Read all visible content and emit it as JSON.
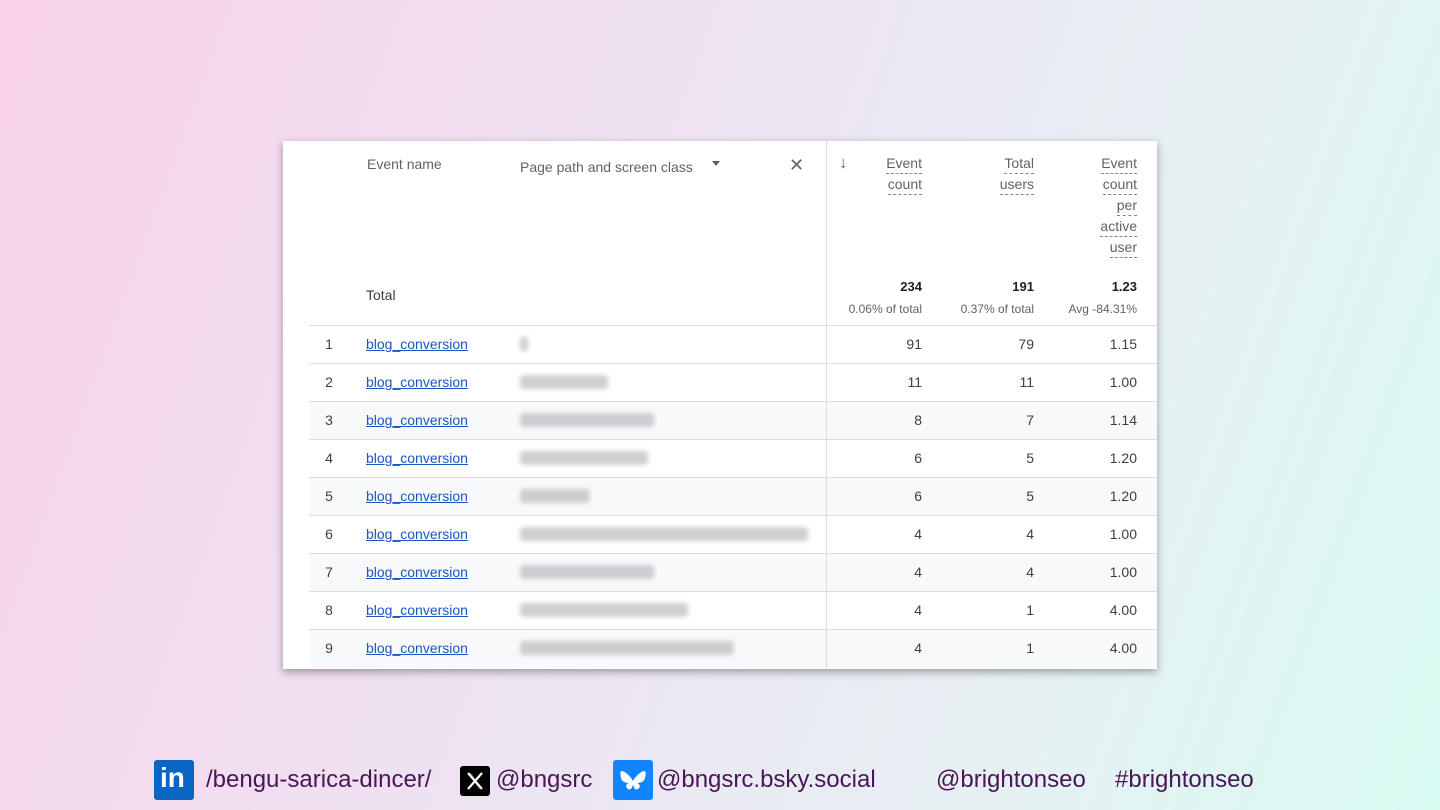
{
  "table": {
    "header": {
      "event_name": "Event name",
      "dimension": "Page path and screen class",
      "metric1": [
        "Event",
        "count"
      ],
      "metric2": [
        "Total",
        "users"
      ],
      "metric3": [
        "Event",
        "count",
        "per",
        "active",
        "user"
      ]
    },
    "totals": {
      "label": "Total",
      "event_count": "234",
      "event_count_sub": "0.06% of total",
      "total_users": "191",
      "total_users_sub": "0.37% of total",
      "per_user": "1.23",
      "per_user_sub": "Avg -84.31%"
    },
    "rows": [
      {
        "idx": "1",
        "event": "blog_conversion",
        "event_count": "91",
        "users": "79",
        "per_user": "1.15"
      },
      {
        "idx": "2",
        "event": "blog_conversion",
        "event_count": "11",
        "users": "11",
        "per_user": "1.00"
      },
      {
        "idx": "3",
        "event": "blog_conversion",
        "event_count": "8",
        "users": "7",
        "per_user": "1.14"
      },
      {
        "idx": "4",
        "event": "blog_conversion",
        "event_count": "6",
        "users": "5",
        "per_user": "1.20"
      },
      {
        "idx": "5",
        "event": "blog_conversion",
        "event_count": "6",
        "users": "5",
        "per_user": "1.20"
      },
      {
        "idx": "6",
        "event": "blog_conversion",
        "event_count": "4",
        "users": "4",
        "per_user": "1.00"
      },
      {
        "idx": "7",
        "event": "blog_conversion",
        "event_count": "4",
        "users": "4",
        "per_user": "1.00"
      },
      {
        "idx": "8",
        "event": "blog_conversion",
        "event_count": "4",
        "users": "1",
        "per_user": "4.00"
      },
      {
        "idx": "9",
        "event": "blog_conversion",
        "event_count": "4",
        "users": "1",
        "per_user": "4.00"
      }
    ]
  },
  "footer": {
    "linkedin": "/bengu-sarica-dincer/",
    "x_handle": "@bngsrc",
    "bluesky": "@bngsrc.bsky.social",
    "handle": "@brightonseo",
    "hashtag": "#brightonseo"
  },
  "icons": {
    "sort": "arrow-down-icon",
    "dropdown": "caret-down-icon",
    "remove": "close-icon",
    "linkedin": "linkedin-icon",
    "x": "x-icon",
    "bluesky": "bluesky-icon"
  },
  "colors": {
    "link": "#1a56c4",
    "footer_text": "#4a1656",
    "linkedin": "#0a66c2",
    "bluesky": "#1185fe"
  }
}
